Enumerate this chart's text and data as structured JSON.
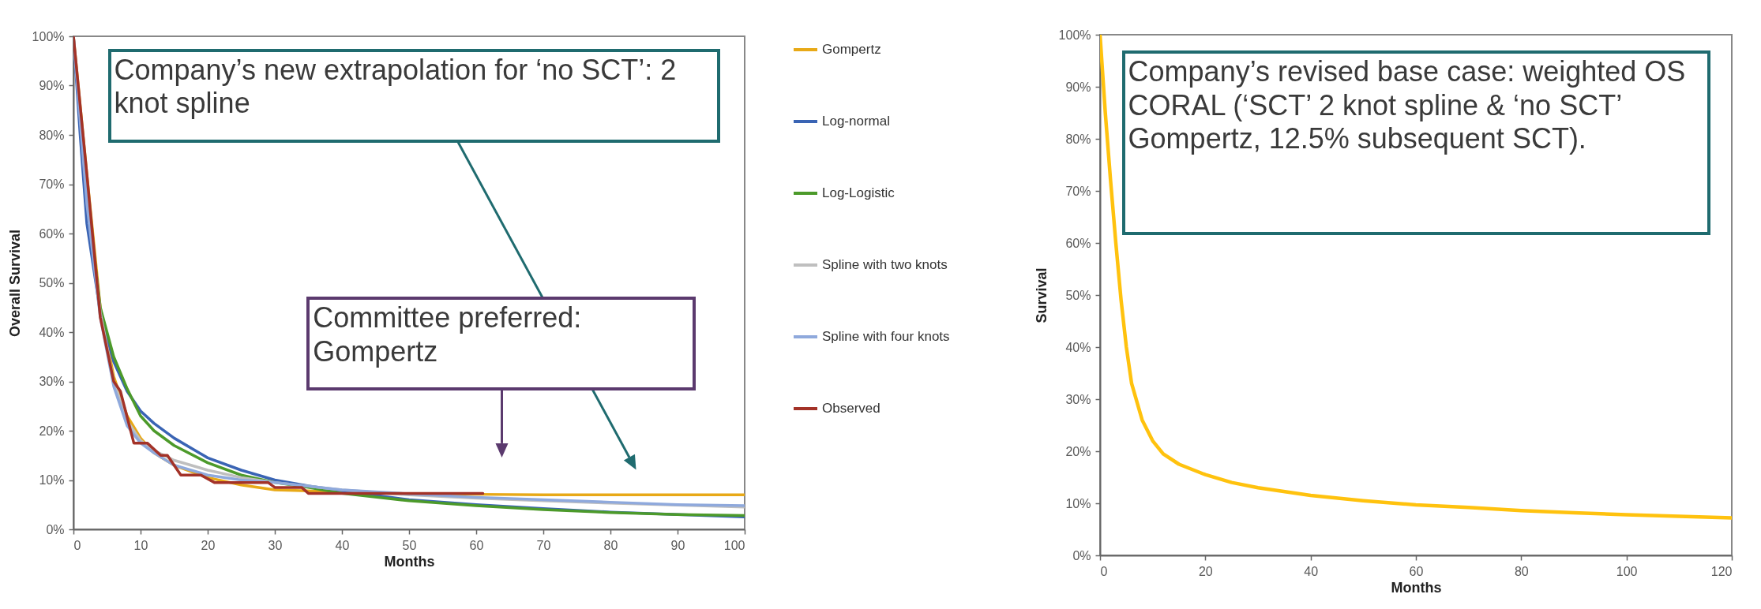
{
  "chart_data": [
    {
      "type": "line",
      "xlabel": "Months",
      "ylabel": "Overall Survival",
      "xlim": [
        0,
        100
      ],
      "xticks": [
        0,
        10,
        20,
        30,
        40,
        50,
        60,
        70,
        80,
        90,
        100
      ],
      "ylim": [
        0,
        100
      ],
      "yticks": [
        {
          "value": 0,
          "label": "0%"
        },
        {
          "value": 10,
          "label": "10%"
        },
        {
          "value": 20,
          "label": "20%"
        },
        {
          "value": 30,
          "label": "30%"
        },
        {
          "value": 40,
          "label": "40%"
        },
        {
          "value": 50,
          "label": "50%"
        },
        {
          "value": 60,
          "label": "60%"
        },
        {
          "value": 70,
          "label": "70%"
        },
        {
          "value": 80,
          "label": "80%"
        },
        {
          "value": 90,
          "label": "90%"
        },
        {
          "value": 100,
          "label": "100%"
        }
      ],
      "legend": "right",
      "series": [
        {
          "name": "Gompertz",
          "color": "#e8a917",
          "x": [
            0,
            2,
            4,
            6,
            8,
            10,
            12,
            15,
            20,
            25,
            30,
            35,
            40,
            50,
            60,
            70,
            80,
            90,
            100
          ],
          "values": [
            100,
            72,
            45,
            31,
            23,
            18.5,
            15.5,
            13,
            10.5,
            9,
            8,
            7.8,
            7.5,
            7.2,
            7.1,
            7,
            7,
            7,
            7
          ]
        },
        {
          "name": "Log-normal",
          "color": "#3a64b4",
          "x": [
            0,
            1,
            2,
            4,
            6,
            8,
            10,
            12,
            15,
            20,
            25,
            30,
            35,
            40,
            50,
            60,
            70,
            80,
            90,
            100
          ],
          "values": [
            100,
            80,
            62,
            44,
            34,
            28,
            24,
            21.5,
            18.5,
            14.5,
            12,
            10,
            8.8,
            7.8,
            6,
            5,
            4.2,
            3.5,
            3,
            2.5
          ]
        },
        {
          "name": "Log-Logistic",
          "color": "#4c9a2a",
          "x": [
            2,
            4,
            6,
            8,
            10,
            12,
            15,
            20,
            25,
            30,
            35,
            40,
            50,
            60,
            70,
            80,
            90,
            100
          ],
          "values": [
            68,
            45,
            35,
            28.5,
            23,
            20,
            17,
            13.5,
            11,
            9.5,
            8.5,
            7.3,
            5.8,
            4.8,
            4,
            3.4,
            3,
            2.8
          ]
        },
        {
          "name": "Spline with two knots",
          "color": "#bfbfbf",
          "x": [
            0,
            2,
            4,
            6,
            8,
            10,
            12,
            15,
            20,
            25,
            30,
            40,
            50,
            60,
            70,
            80,
            90,
            100
          ],
          "values": [
            100,
            68,
            44,
            30,
            22,
            18,
            16,
            14,
            12,
            10.5,
            9.5,
            8,
            7,
            6.3,
            5.8,
            5.3,
            4.9,
            4.5
          ]
        },
        {
          "name": "Spline with four knots",
          "color": "#8fa9dc",
          "x": [
            0,
            2,
            4,
            6,
            8,
            10,
            12,
            15,
            20,
            25,
            30,
            40,
            50,
            60,
            70,
            80,
            90,
            100
          ],
          "values": [
            100,
            66,
            43,
            29,
            21,
            17.5,
            15.5,
            13,
            11,
            10,
            9.5,
            8,
            7.2,
            6.5,
            6,
            5.5,
            5,
            4.8
          ]
        },
        {
          "name": "Observed",
          "color": "#a33228",
          "x": [
            0,
            2,
            4,
            6,
            7,
            9,
            11,
            13,
            14,
            16,
            19,
            21,
            29,
            30,
            34,
            35,
            61
          ],
          "values": [
            100,
            72,
            43,
            30,
            28,
            17.5,
            17.5,
            15,
            15,
            11,
            11,
            9.5,
            9.5,
            8.5,
            8.5,
            7.3,
            7.3
          ]
        }
      ],
      "annotations": [
        "Company’s new extrapolation for ‘no SCT’: 2 knot spline",
        "Committee preferred: Gompertz"
      ]
    },
    {
      "type": "line",
      "xlabel": "Months",
      "ylabel": "Survival",
      "xlim": [
        0,
        120
      ],
      "xticks": [
        0,
        20,
        40,
        60,
        80,
        100,
        120
      ],
      "ylim": [
        0,
        100
      ],
      "yticks": [
        {
          "value": 0,
          "label": "0%"
        },
        {
          "value": 10,
          "label": "10%"
        },
        {
          "value": 20,
          "label": "20%"
        },
        {
          "value": 30,
          "label": "30%"
        },
        {
          "value": 40,
          "label": "40%"
        },
        {
          "value": 50,
          "label": "50%"
        },
        {
          "value": 60,
          "label": "60%"
        },
        {
          "value": 70,
          "label": "70%"
        },
        {
          "value": 80,
          "label": "80%"
        },
        {
          "value": 90,
          "label": "90%"
        },
        {
          "value": 100,
          "label": "100%"
        }
      ],
      "series": [
        {
          "color": "#ffc20e",
          "x": [
            0,
            1,
            2,
            3,
            4,
            5,
            6,
            8,
            10,
            12,
            15,
            20,
            25,
            30,
            40,
            50,
            60,
            70,
            80,
            90,
            100,
            110,
            120
          ],
          "values": [
            100,
            85,
            72,
            60,
            49,
            40,
            33,
            26,
            22,
            19.5,
            17.5,
            15.5,
            14,
            13,
            11.5,
            10.5,
            9.7,
            9.2,
            8.6,
            8.2,
            7.8,
            7.5,
            7.2
          ]
        }
      ],
      "annotations": [
        "Company’s revised base case: weighted OS CORAL (‘SCT’ 2 knot spline & ‘no SCT’ Gompertz, 12.5% subsequent SCT)."
      ]
    }
  ]
}
